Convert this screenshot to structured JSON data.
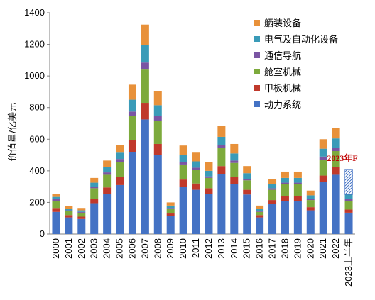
{
  "chart_data": {
    "type": "bar",
    "stacked": true,
    "categories": [
      "2000",
      "2001",
      "2002",
      "2003",
      "2004",
      "2005",
      "2006",
      "2007",
      "2008",
      "2009",
      "2010",
      "2011",
      "2012",
      "2013",
      "2014",
      "2015",
      "2016",
      "2017",
      "2018",
      "2019",
      "2020",
      "2021",
      "2022",
      "2023上半年"
    ],
    "ylabel": "价值量/亿美元",
    "ylim": [
      0,
      1400
    ],
    "yticks": [
      0,
      200,
      400,
      600,
      800,
      1000,
      1200,
      1400
    ],
    "ytick_labels": [
      "0",
      "200",
      "400",
      "600",
      "800",
      "1000",
      "1200",
      "1400"
    ],
    "grid": false,
    "legend_position": "top-right",
    "series": [
      {
        "name": "动力系统",
        "color": "#4472c4",
        "values": [
          140,
          105,
          95,
          195,
          255,
          310,
          520,
          725,
          500,
          115,
          300,
          280,
          255,
          380,
          315,
          250,
          105,
          190,
          210,
          210,
          150,
          330,
          375,
          135
        ]
      },
      {
        "name": "甲板机械",
        "color": "#c0392b",
        "values": [
          25,
          15,
          15,
          25,
          40,
          50,
          75,
          105,
          70,
          15,
          45,
          40,
          35,
          50,
          45,
          30,
          15,
          25,
          30,
          30,
          20,
          40,
          50,
          20
        ]
      },
      {
        "name": "舱室机械",
        "color": "#7daa3c",
        "values": [
          45,
          25,
          25,
          70,
          80,
          95,
          150,
          215,
          145,
          30,
          95,
          85,
          65,
          115,
          90,
          60,
          20,
          65,
          75,
          75,
          45,
          100,
          100,
          55
        ]
      },
      {
        "name": "通信导航",
        "color": "#7a55a3",
        "values": [
          10,
          5,
          5,
          10,
          15,
          20,
          30,
          40,
          30,
          5,
          15,
          15,
          10,
          20,
          15,
          10,
          5,
          10,
          10,
          10,
          5,
          20,
          20,
          10
        ]
      },
      {
        "name": "电气及自动化设备",
        "color": "#3a9bb8",
        "values": [
          15,
          10,
          10,
          25,
          35,
          40,
          75,
          110,
          70,
          15,
          45,
          40,
          35,
          50,
          45,
          35,
          15,
          25,
          30,
          30,
          25,
          50,
          60,
          30
        ]
      },
      {
        "name": "舾装设备",
        "color": "#e8913a",
        "values": [
          20,
          15,
          15,
          30,
          40,
          50,
          95,
          130,
          90,
          20,
          60,
          55,
          55,
          70,
          60,
          45,
          20,
          35,
          40,
          40,
          30,
          60,
          65,
          0
        ]
      }
    ],
    "projection": {
      "category": "2023上半年",
      "label": "2023年F",
      "value": 410
    }
  }
}
